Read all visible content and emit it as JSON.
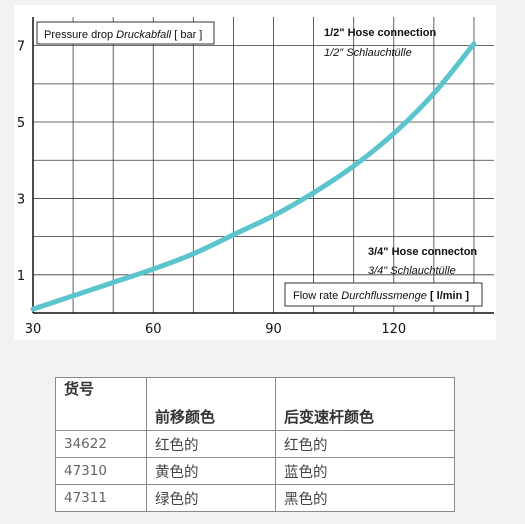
{
  "chart_data": {
    "type": "line",
    "x": [
      30,
      40,
      50,
      60,
      70,
      80,
      90,
      100,
      110,
      120,
      130,
      140
    ],
    "series": [
      {
        "values": [
          0.1,
          0.45,
          0.8,
          1.15,
          1.55,
          2.05,
          2.55,
          3.15,
          3.85,
          4.7,
          5.75,
          7.05
        ]
      }
    ],
    "xticks": [
      30,
      60,
      90,
      120
    ],
    "yticks": [
      1,
      3,
      5,
      7
    ],
    "xlim": [
      30,
      145
    ],
    "ylim": [
      0,
      7.75
    ],
    "grid": true,
    "line_color": "#5bc4cc",
    "annotations": {
      "y_title_plain": "Pressure drop ",
      "y_title_italic": "Druckabfall",
      "y_title_unit": " [ bar ]",
      "x_title_plain": "Flow rate ",
      "x_title_italic": "Durchflussmenge",
      "x_title_unit": " [ l/min ]",
      "hose_half_en": "1/2\" Hose connection",
      "hose_half_de": "1/2\" Schlauchtülle",
      "hose_threequarter_en": "3/4\" Hose connecton",
      "hose_threequarter_de": "3/4\" Schlauchtülle"
    }
  },
  "table": {
    "header": {
      "col1": "货号",
      "col2": "前移颜色",
      "col3": "后变速杆颜色"
    },
    "rows": [
      {
        "code": "34622",
        "front": "红色的",
        "rear": "红色的"
      },
      {
        "code": "47310",
        "front": "黄色的",
        "rear": "蓝色的"
      },
      {
        "code": "47311",
        "front": "绿色的",
        "rear": "黑色的"
      }
    ]
  }
}
